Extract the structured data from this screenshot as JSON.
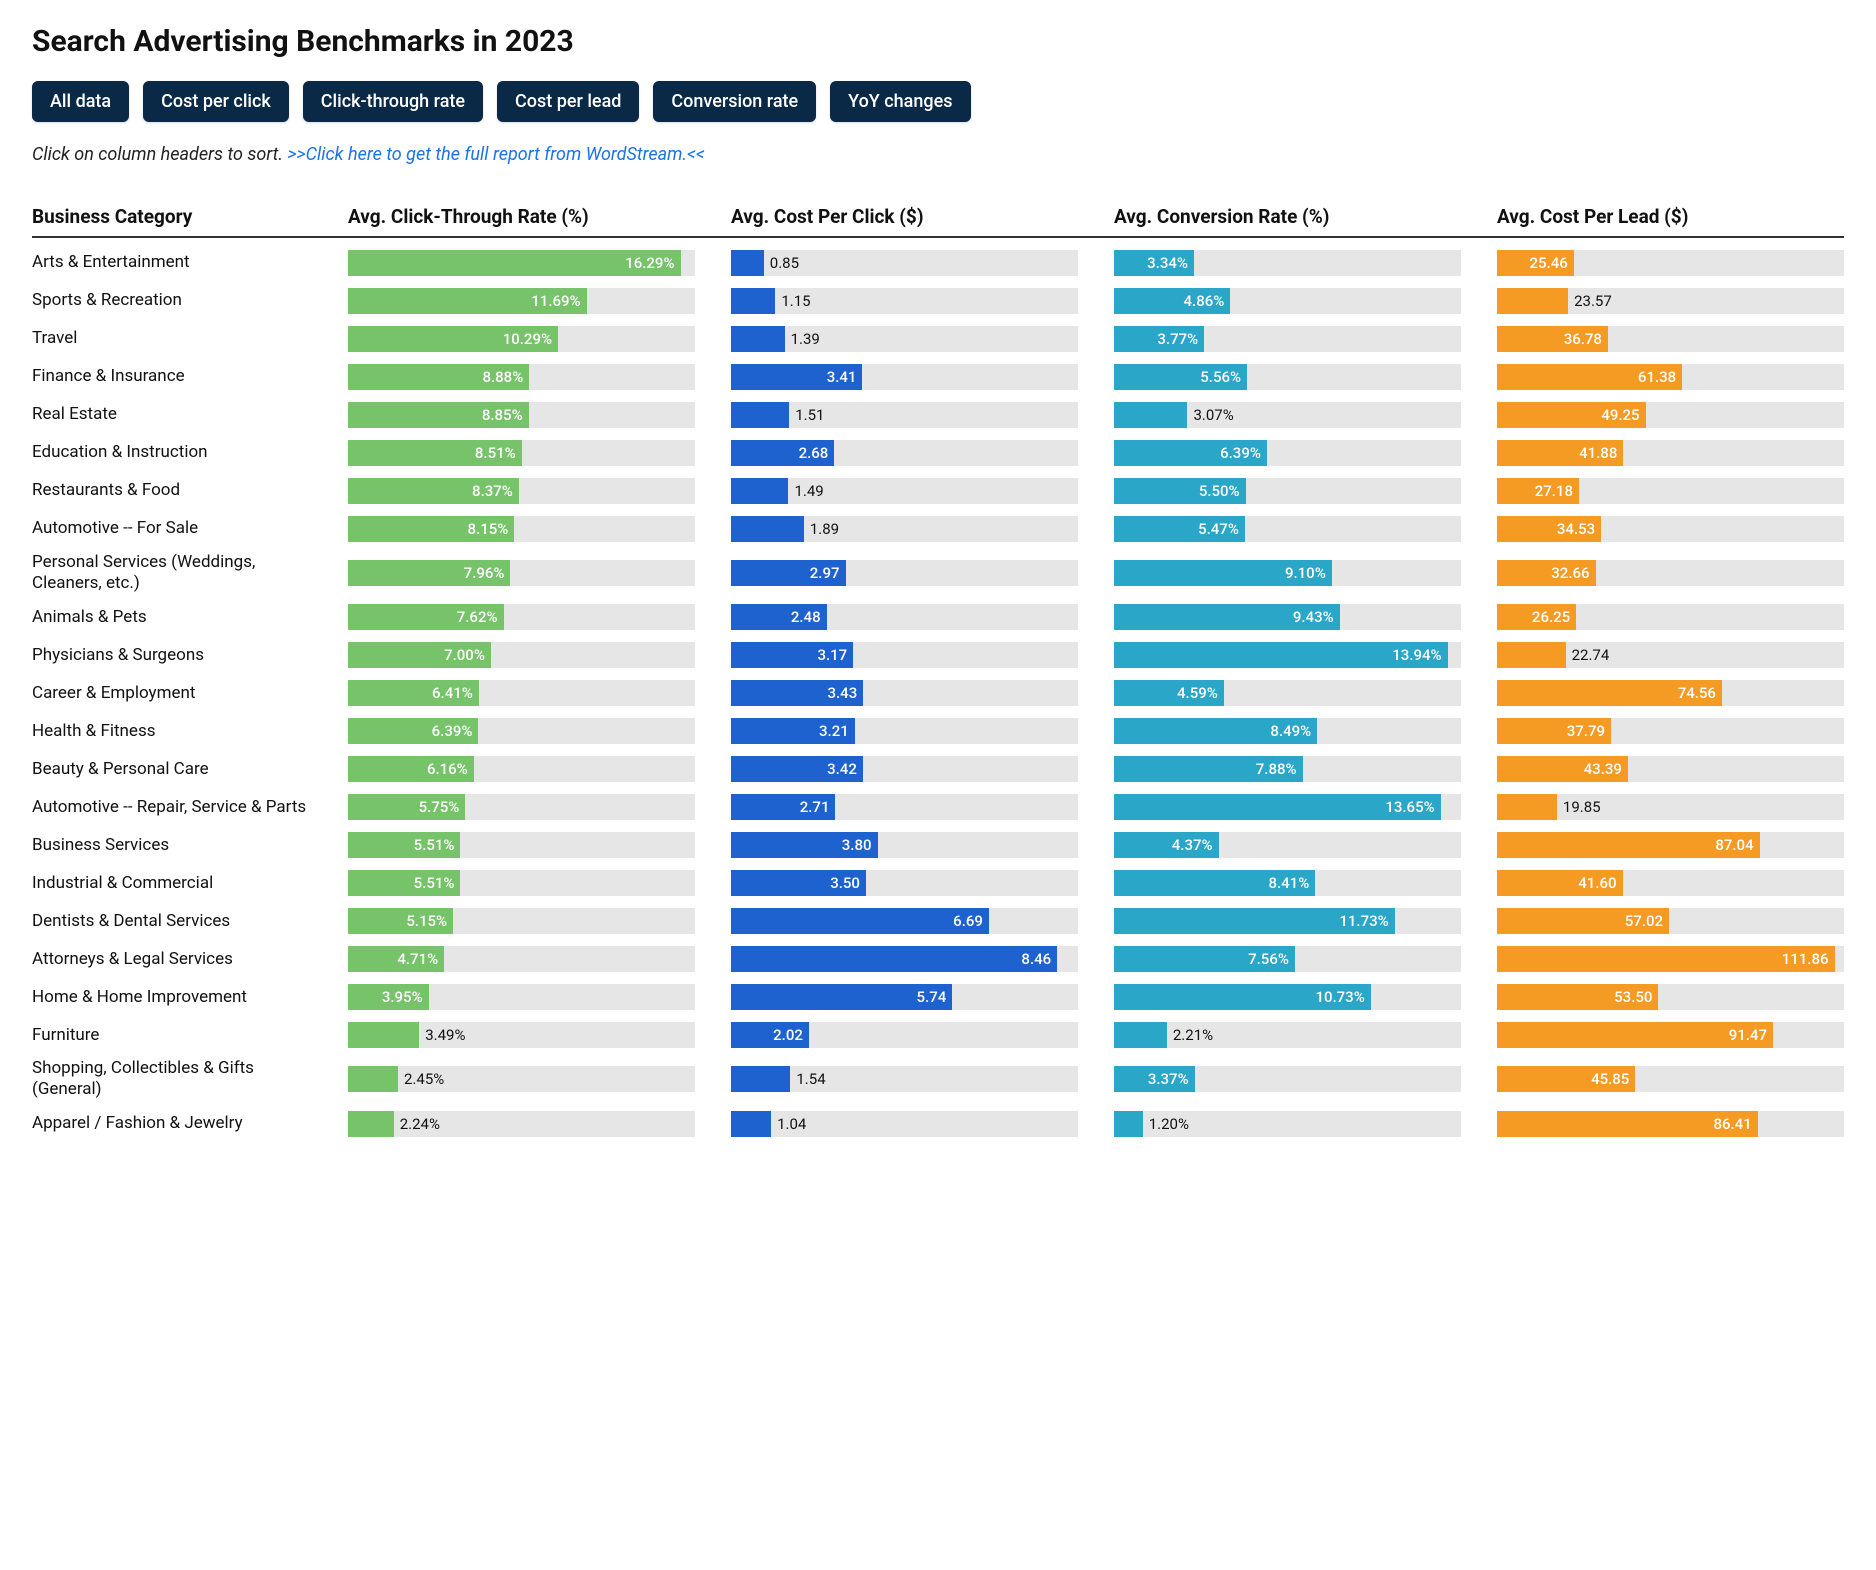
{
  "title": "Search Advertising Benchmarks in 2023",
  "tabs": [
    "All data",
    "Cost per click",
    "Click-through rate",
    "Cost per lead",
    "Conversion rate",
    "YoY changes"
  ],
  "subtext": {
    "prefix": "Click on column headers to sort. ",
    "link": ">>Click here to get the full report from WordStream.<<"
  },
  "columns": {
    "category": "Business Category",
    "ctr": {
      "label": "Avg. Click-Through Rate (%)",
      "color": "#76c36a",
      "max": 17.0,
      "suffix": "%"
    },
    "cpc": {
      "label": "Avg. Cost Per Click ($)",
      "color": "#1e62d0",
      "max": 9.0,
      "suffix": ""
    },
    "conv": {
      "label": "Avg. Conversion Rate (%)",
      "color": "#2aa6c9",
      "max": 14.5,
      "suffix": "%"
    },
    "cpl": {
      "label": "Avg. Cost Per Lead ($)",
      "color": "#f59a23",
      "max": 115.0,
      "suffix": ""
    }
  },
  "bar_background": "#e6e6e6",
  "inside_threshold_pct": 22,
  "rows": [
    {
      "category": "Arts & Entertainment",
      "ctr": 16.29,
      "cpc": 0.85,
      "conv": 3.34,
      "cpl": 25.46
    },
    {
      "category": "Sports & Recreation",
      "ctr": 11.69,
      "cpc": 1.15,
      "conv": 4.86,
      "cpl": 23.57
    },
    {
      "category": "Travel",
      "ctr": 10.29,
      "cpc": 1.39,
      "conv": 3.77,
      "cpl": 36.78
    },
    {
      "category": "Finance & Insurance",
      "ctr": 8.88,
      "cpc": 3.41,
      "conv": 5.56,
      "cpl": 61.38
    },
    {
      "category": "Real Estate",
      "ctr": 8.85,
      "cpc": 1.51,
      "conv": 3.07,
      "cpl": 49.25
    },
    {
      "category": "Education & Instruction",
      "ctr": 8.51,
      "cpc": 2.68,
      "conv": 6.39,
      "cpl": 41.88
    },
    {
      "category": "Restaurants & Food",
      "ctr": 8.37,
      "cpc": 1.49,
      "conv": 5.5,
      "cpl": 27.18
    },
    {
      "category": "Automotive -- For Sale",
      "ctr": 8.15,
      "cpc": 1.89,
      "conv": 5.47,
      "cpl": 34.53
    },
    {
      "category": "Personal Services (Weddings, Cleaners, etc.)",
      "ctr": 7.96,
      "cpc": 2.97,
      "conv": 9.1,
      "cpl": 32.66
    },
    {
      "category": "Animals & Pets",
      "ctr": 7.62,
      "cpc": 2.48,
      "conv": 9.43,
      "cpl": 26.25
    },
    {
      "category": "Physicians & Surgeons",
      "ctr": 7.0,
      "cpc": 3.17,
      "conv": 13.94,
      "cpl": 22.74
    },
    {
      "category": "Career & Employment",
      "ctr": 6.41,
      "cpc": 3.43,
      "conv": 4.59,
      "cpl": 74.56
    },
    {
      "category": "Health & Fitness",
      "ctr": 6.39,
      "cpc": 3.21,
      "conv": 8.49,
      "cpl": 37.79
    },
    {
      "category": "Beauty & Personal Care",
      "ctr": 6.16,
      "cpc": 3.42,
      "conv": 7.88,
      "cpl": 43.39
    },
    {
      "category": "Automotive -- Repair, Service & Parts",
      "ctr": 5.75,
      "cpc": 2.71,
      "conv": 13.65,
      "cpl": 19.85
    },
    {
      "category": "Business Services",
      "ctr": 5.51,
      "cpc": 3.8,
      "conv": 4.37,
      "cpl": 87.04
    },
    {
      "category": "Industrial & Commercial",
      "ctr": 5.51,
      "cpc": 3.5,
      "conv": 8.41,
      "cpl": 41.6
    },
    {
      "category": "Dentists & Dental Services",
      "ctr": 5.15,
      "cpc": 6.69,
      "conv": 11.73,
      "cpl": 57.02
    },
    {
      "category": "Attorneys & Legal Services",
      "ctr": 4.71,
      "cpc": 8.46,
      "conv": 7.56,
      "cpl": 111.86
    },
    {
      "category": "Home & Home Improvement",
      "ctr": 3.95,
      "cpc": 5.74,
      "conv": 10.73,
      "cpl": 53.5
    },
    {
      "category": "Furniture",
      "ctr": 3.49,
      "cpc": 2.02,
      "conv": 2.21,
      "cpl": 91.47
    },
    {
      "category": "Shopping, Collectibles & Gifts (General)",
      "ctr": 2.45,
      "cpc": 1.54,
      "conv": 3.37,
      "cpl": 45.85
    },
    {
      "category": "Apparel / Fashion & Jewelry",
      "ctr": 2.24,
      "cpc": 1.04,
      "conv": 1.2,
      "cpl": 86.41
    }
  ]
}
